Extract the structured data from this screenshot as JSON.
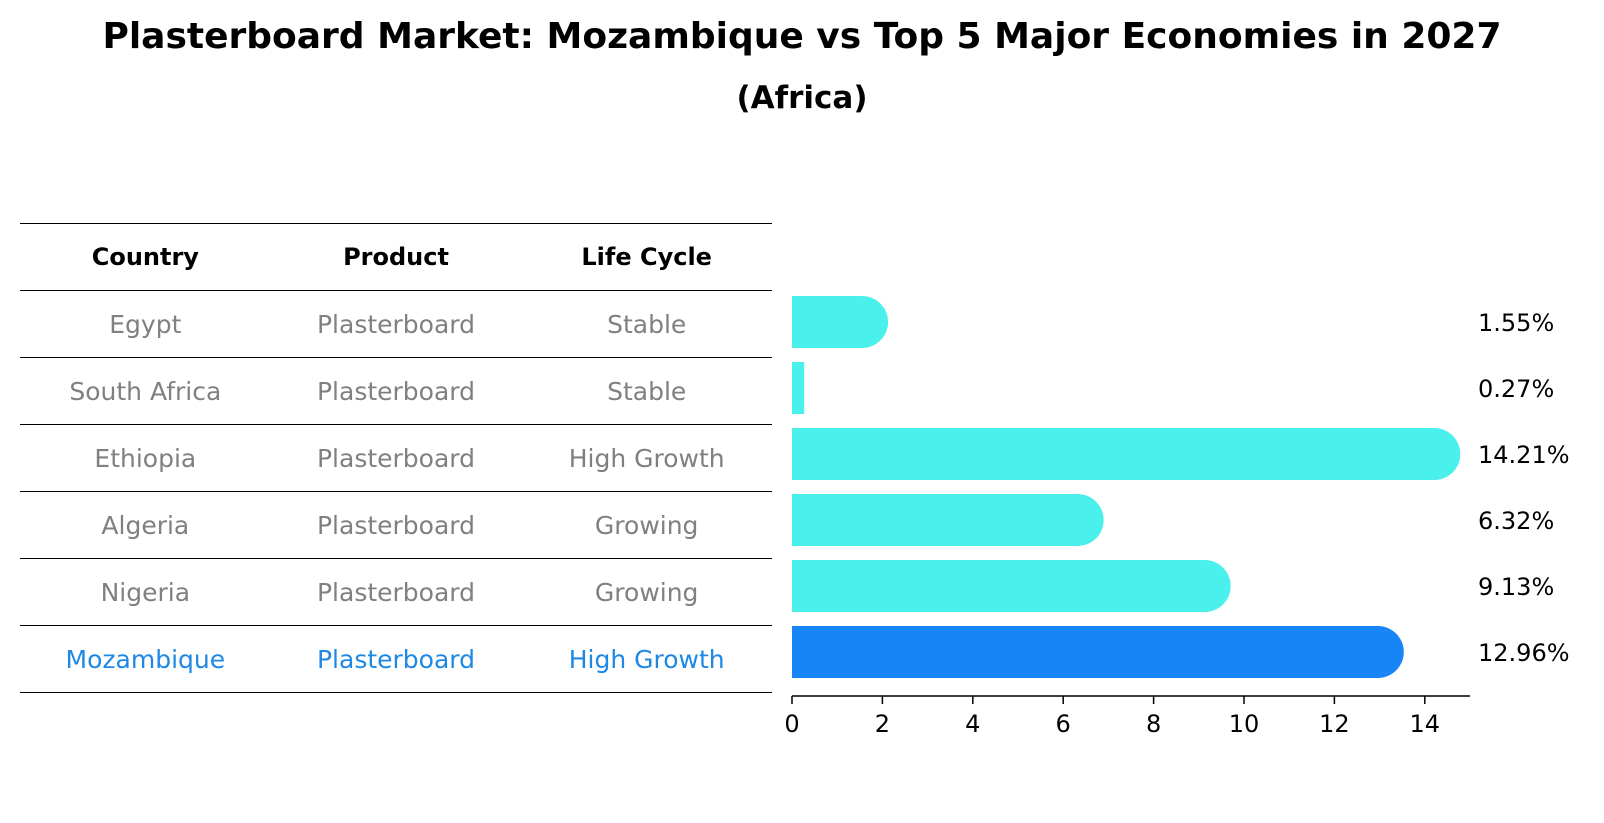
{
  "title": "Plasterboard Market: Mozambique vs Top 5 Major Economies in 2027",
  "subtitle": "(Africa)",
  "table": {
    "headers": [
      "Country",
      "Product",
      "Life Cycle"
    ],
    "rows": [
      {
        "country": "Egypt",
        "product": "Plasterboard",
        "life_cycle": "Stable"
      },
      {
        "country": "South Africa",
        "product": "Plasterboard",
        "life_cycle": "Stable"
      },
      {
        "country": "Ethiopia",
        "product": "Plasterboard",
        "life_cycle": "High Growth"
      },
      {
        "country": "Algeria",
        "product": "Plasterboard",
        "life_cycle": "Growing"
      },
      {
        "country": "Nigeria",
        "product": "Plasterboard",
        "life_cycle": "Growing"
      },
      {
        "country": "Mozambique",
        "product": "Plasterboard",
        "life_cycle": "High Growth"
      }
    ]
  },
  "colors": {
    "bar": "#4af0ec",
    "highlight": "#1785f5",
    "highlight_text": "#1e88e5",
    "muted_text": "#808080"
  },
  "chart_data": {
    "type": "bar",
    "orientation": "horizontal",
    "title": "Plasterboard Market: Mozambique vs Top 5 Major Economies in 2027",
    "subtitle": "(Africa)",
    "categories": [
      "Egypt",
      "South Africa",
      "Ethiopia",
      "Algeria",
      "Nigeria",
      "Mozambique"
    ],
    "values": [
      1.55,
      0.27,
      14.21,
      6.32,
      9.13,
      12.96
    ],
    "value_labels": [
      "1.55%",
      "0.27%",
      "14.21%",
      "6.32%",
      "9.13%",
      "12.96%"
    ],
    "highlight": "Mozambique",
    "xlim": [
      0,
      15
    ],
    "xticks": [
      0,
      2,
      4,
      6,
      8,
      10,
      12,
      14
    ],
    "xlabel": "",
    "ylabel": "",
    "grid": false,
    "legend": "none"
  }
}
